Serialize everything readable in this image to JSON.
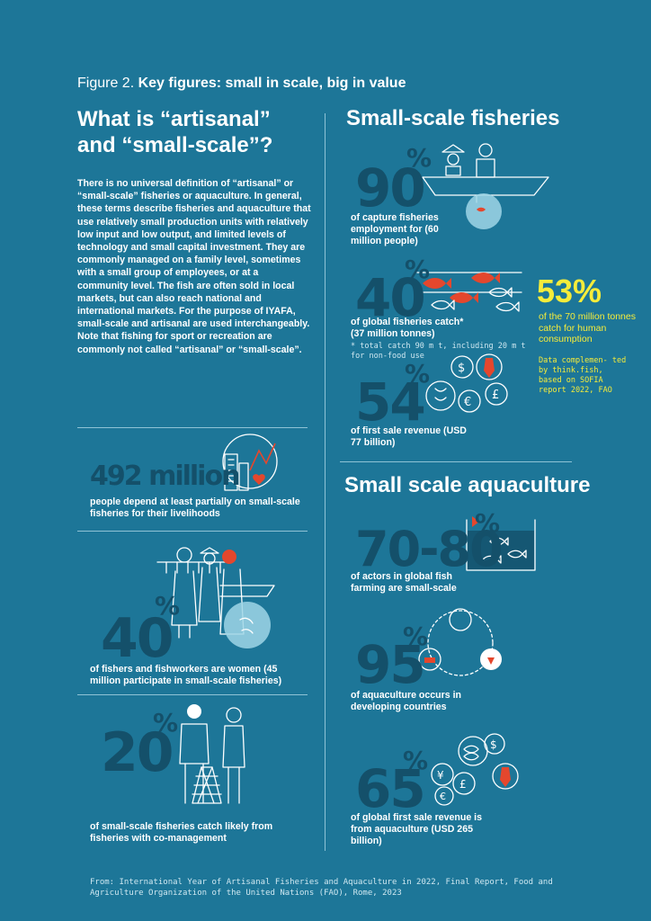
{
  "figure": {
    "prefix": "Figure 2.",
    "title": "Key figures: small in scale, big in value"
  },
  "left": {
    "heading": "What is “artisanal” and “small-scale”?",
    "intro": "There is no universal definition of “artisanal” or “small-scale” fisheries or aquaculture. In general, these terms describe fisheries and aquaculture that use relatively small production units with relatively low input and low output, and limited levels of technology and small capital investment. They are commonly managed on a family level, sometimes with a small group of employees, or at a community level. The fish are often sold in local markets, but can also reach national and international markets. For the purpose of IYAFA, small-scale and artisanal are used interchangeably. Note that fishing for sport or recreation are commonly not called “artisanal” or “small-scale”.",
    "stats": [
      {
        "value": "492 million",
        "caption": "people depend at least partially on small-scale fisheries for their livelihoods"
      },
      {
        "value": "40",
        "unit": "%",
        "caption": "of fishers and fishworkers are women (45 million participate in small-scale fisheries)"
      },
      {
        "value": "20",
        "unit": "%",
        "caption": "of small-scale fisheries catch likely from fisheries with co-management"
      }
    ]
  },
  "right": {
    "heading": "Small-scale fisheries",
    "stats": [
      {
        "value": "90",
        "unit": "%",
        "caption": "of capture fisheries employment for (60 million people)"
      },
      {
        "value": "40",
        "unit": "%",
        "caption": "of global fisheries catch",
        "asterisk": "*",
        "sub": "(37 million tonnes)",
        "note": "* total catch 90 m t, including 20 m t for non-food use"
      },
      {
        "value": "54",
        "unit": "%",
        "caption": "of first sale revenue (USD 77 billion)"
      }
    ],
    "highlight": {
      "value": "53%",
      "caption": "of the 70 million tonnes catch for human consumption",
      "source": "Data complemen- ted by think.fish, based on SOFIA report 2022, FAO"
    },
    "aqua_heading": "Small scale aquaculture",
    "aqua_stats": [
      {
        "value": "70-80",
        "unit": "%",
        "caption": "of actors in global fish farming are small-scale"
      },
      {
        "value": "95",
        "unit": "%",
        "caption": "of aquaculture occurs in developing countries"
      },
      {
        "value": "65",
        "unit": "%",
        "caption": "of global first sale revenue is from aquaculture (USD 265 billion)"
      }
    ]
  },
  "footer": "From: International Year of Artisanal Fisheries and Aquaculture in 2022, Final Report, Food and Agriculture Organization of the United Nations (FAO), Rome, 2023",
  "colors": {
    "background": "#1d7698",
    "number": "#14506a",
    "accent": "#f6ec3a",
    "fish": "#e4472d"
  }
}
